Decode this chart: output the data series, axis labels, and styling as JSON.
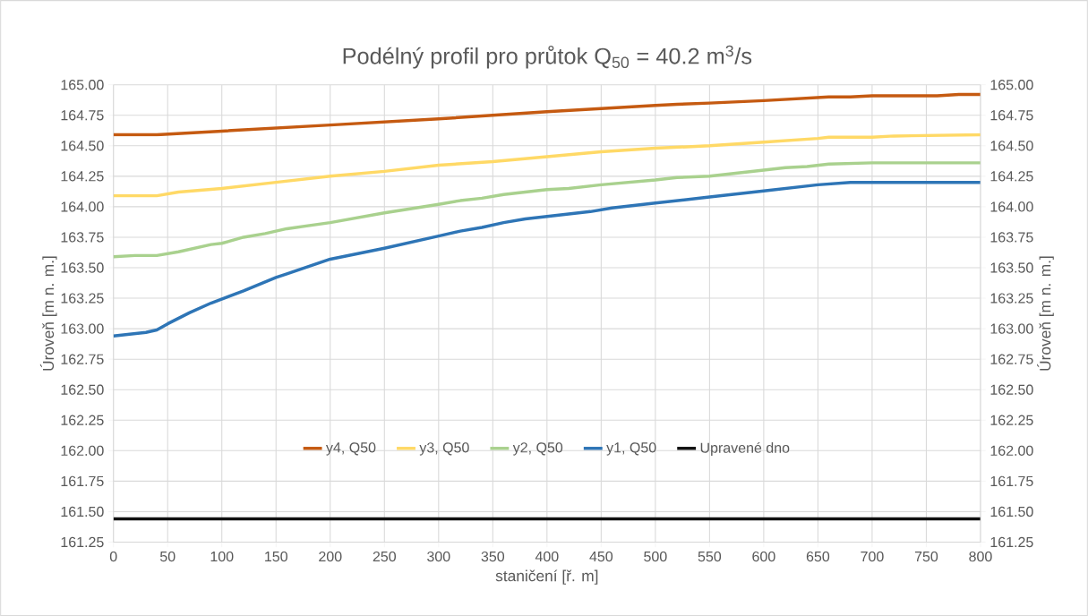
{
  "chart_data": {
    "type": "line",
    "title": "Podélný profil pro průtok Q$_{50}$ = 40.2 m$^{3}$/s",
    "xlabel": "staničení [ř. m]",
    "ylabel": "Úroveň [m n. m.]",
    "y2label": "Úroveň [m n. m.]",
    "xlim": [
      0,
      800
    ],
    "xticks": [
      0,
      50,
      100,
      150,
      200,
      250,
      300,
      350,
      400,
      450,
      500,
      550,
      600,
      650,
      700,
      750,
      800
    ],
    "ylim": [
      161.25,
      165.0
    ],
    "yticks": [
      {
        "value": 161.25,
        "label": "161.25"
      },
      {
        "value": 161.5,
        "label": "161.50"
      },
      {
        "value": 161.75,
        "label": "161.75"
      },
      {
        "value": 162.0,
        "label": "162.00"
      },
      {
        "value": 162.25,
        "label": "162.25"
      },
      {
        "value": 162.5,
        "label": "162.50"
      },
      {
        "value": 162.75,
        "label": "162.75"
      },
      {
        "value": 163.0,
        "label": "163.00"
      },
      {
        "value": 163.25,
        "label": "163.25"
      },
      {
        "value": 163.5,
        "label": "163.50"
      },
      {
        "value": 163.75,
        "label": "163.75"
      },
      {
        "value": 164.0,
        "label": "164.00"
      },
      {
        "value": 164.25,
        "label": "164.25"
      },
      {
        "value": 164.5,
        "label": "164.50"
      },
      {
        "value": 164.75,
        "label": "164.75"
      },
      {
        "value": 165.0,
        "label": "165.00"
      }
    ],
    "y2lim": [
      161.25,
      165.0
    ],
    "y2ticks": [
      {
        "value": 161.25,
        "label": "161.25"
      },
      {
        "value": 161.5,
        "label": "161.50"
      },
      {
        "value": 161.75,
        "label": "161.75"
      },
      {
        "value": 162.0,
        "label": "162.00"
      },
      {
        "value": 162.25,
        "label": "162.25"
      },
      {
        "value": 162.5,
        "label": "162.50"
      },
      {
        "value": 162.75,
        "label": "162.75"
      },
      {
        "value": 163.0,
        "label": "163.00"
      },
      {
        "value": 163.25,
        "label": "163.25"
      },
      {
        "value": 163.5,
        "label": "163.50"
      },
      {
        "value": 163.75,
        "label": "163.75"
      },
      {
        "value": 164.0,
        "label": "164.00"
      },
      {
        "value": 164.25,
        "label": "164.25"
      },
      {
        "value": 164.5,
        "label": "164.50"
      },
      {
        "value": 164.75,
        "label": "164.75"
      },
      {
        "value": 165.0,
        "label": "165.00"
      }
    ],
    "grid": true,
    "legend": "bottom",
    "series": [
      {
        "name": "y4, Q50",
        "color": "#c55a11",
        "x": [
          0,
          40,
          100,
          200,
          300,
          400,
          500,
          520,
          550,
          600,
          660,
          680,
          700,
          760,
          780,
          800
        ],
        "values": [
          164.59,
          164.59,
          164.62,
          164.67,
          164.72,
          164.78,
          164.83,
          164.84,
          164.85,
          164.87,
          164.9,
          164.9,
          164.91,
          164.91,
          164.92,
          164.92
        ]
      },
      {
        "name": "y3, Q50",
        "color": "#ffd966",
        "x": [
          0,
          40,
          60,
          100,
          150,
          200,
          250,
          300,
          350,
          400,
          450,
          500,
          550,
          600,
          650,
          660,
          700,
          720,
          800
        ],
        "values": [
          164.09,
          164.09,
          164.12,
          164.15,
          164.2,
          164.25,
          164.29,
          164.34,
          164.37,
          164.41,
          164.45,
          164.48,
          164.5,
          164.53,
          164.56,
          164.57,
          164.57,
          164.58,
          164.59
        ]
      },
      {
        "name": "y2, Q50",
        "color": "#a9d18e",
        "x": [
          0,
          20,
          40,
          60,
          90,
          100,
          120,
          140,
          160,
          200,
          250,
          300,
          320,
          340,
          360,
          400,
          420,
          450,
          500,
          520,
          550,
          600,
          620,
          640,
          660,
          700,
          800
        ],
        "values": [
          163.59,
          163.6,
          163.6,
          163.63,
          163.69,
          163.7,
          163.75,
          163.78,
          163.82,
          163.87,
          163.95,
          164.02,
          164.05,
          164.07,
          164.1,
          164.14,
          164.15,
          164.18,
          164.22,
          164.24,
          164.25,
          164.3,
          164.32,
          164.33,
          164.35,
          164.36,
          164.36
        ]
      },
      {
        "name": "y1, Q50",
        "color": "#2e75b6",
        "x": [
          0,
          30,
          40,
          50,
          70,
          90,
          120,
          150,
          160,
          180,
          200,
          250,
          300,
          320,
          340,
          360,
          380,
          400,
          420,
          440,
          460,
          500,
          550,
          600,
          650,
          680,
          800
        ],
        "values": [
          162.94,
          162.97,
          162.99,
          163.04,
          163.13,
          163.21,
          163.31,
          163.42,
          163.45,
          163.51,
          163.57,
          163.66,
          163.76,
          163.8,
          163.83,
          163.87,
          163.9,
          163.92,
          163.94,
          163.96,
          163.99,
          164.03,
          164.08,
          164.13,
          164.18,
          164.2,
          164.2
        ]
      },
      {
        "name": "Upravené dno",
        "color": "#111111",
        "x": [
          0,
          800
        ],
        "values": [
          161.44,
          161.44
        ]
      }
    ]
  }
}
